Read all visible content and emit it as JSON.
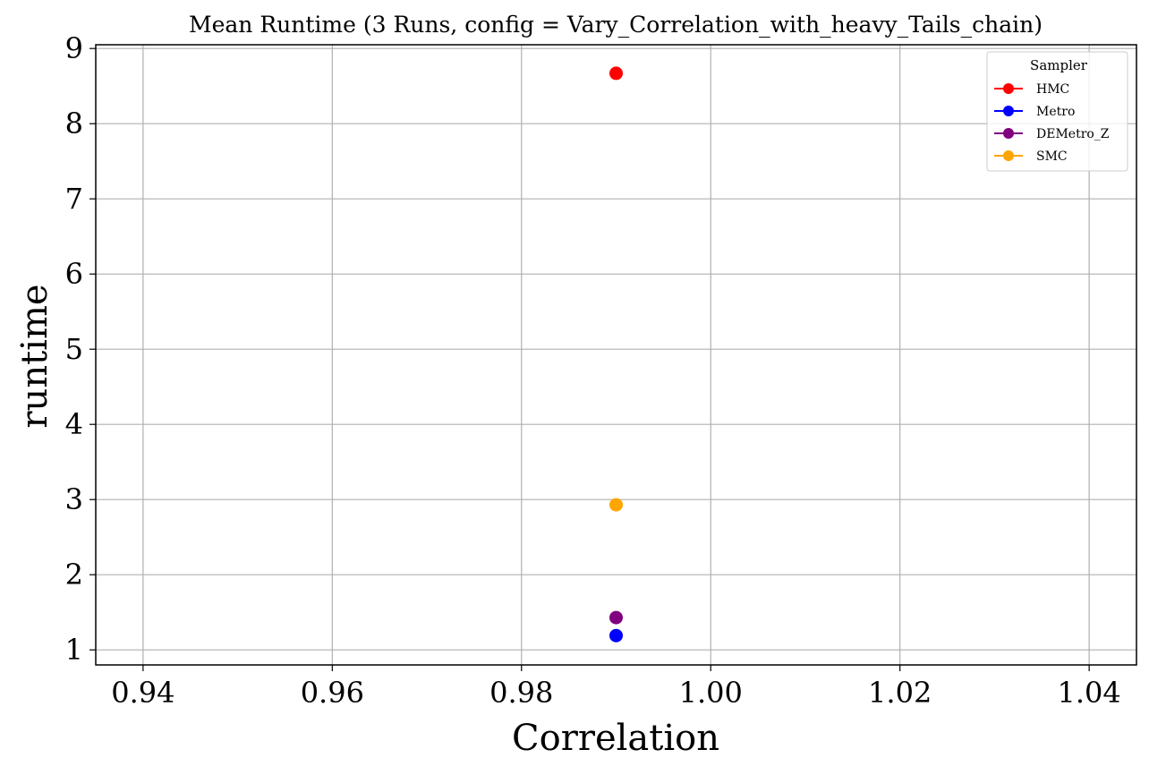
{
  "chart_data": {
    "type": "scatter",
    "title": "Mean Runtime (3 Runs, config = Vary_Correlation_with_heavy_Tails_chain)",
    "xlabel": "Correlation",
    "ylabel": "runtime",
    "xlim": [
      0.935,
      1.045
    ],
    "ylim": [
      0.8,
      9.05
    ],
    "xticks": [
      0.94,
      0.96,
      0.98,
      1.0,
      1.02,
      1.04
    ],
    "xtick_labels": [
      "0.94",
      "0.96",
      "0.98",
      "1.00",
      "1.02",
      "1.04"
    ],
    "yticks": [
      1,
      2,
      3,
      4,
      5,
      6,
      7,
      8,
      9
    ],
    "ytick_labels": [
      "1",
      "2",
      "3",
      "4",
      "5",
      "6",
      "7",
      "8",
      "9"
    ],
    "grid": true,
    "legend": {
      "title": "Sampler",
      "position": "top-right"
    },
    "series": [
      {
        "name": "HMC",
        "color": "#ff0000",
        "x": [
          0.99
        ],
        "y": [
          8.67
        ]
      },
      {
        "name": "Metro",
        "color": "#0000ff",
        "x": [
          0.99
        ],
        "y": [
          1.19
        ]
      },
      {
        "name": "DEMetro_Z",
        "color": "#800080",
        "x": [
          0.99
        ],
        "y": [
          1.43
        ]
      },
      {
        "name": "SMC",
        "color": "#ffa500",
        "x": [
          0.99
        ],
        "y": [
          2.93
        ]
      }
    ]
  }
}
